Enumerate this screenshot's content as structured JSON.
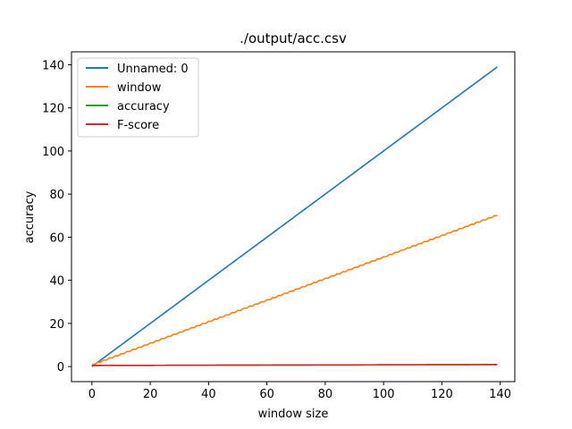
{
  "chart_data": {
    "type": "line",
    "title": "./output/acc.csv",
    "xlabel": "window size",
    "ylabel": "accuracy",
    "xlim": [
      -7,
      145
    ],
    "ylim": [
      -7,
      146
    ],
    "xticks": [
      0,
      20,
      40,
      60,
      80,
      100,
      120,
      140
    ],
    "yticks": [
      0,
      20,
      40,
      60,
      80,
      100,
      120,
      140
    ],
    "legend_position": "top-left",
    "grid": false,
    "x": {
      "start": 0,
      "end": 139,
      "step": 1
    },
    "series": [
      {
        "name": "Unnamed: 0",
        "color": "#1f77b4",
        "formula": "y = x",
        "values_at": {
          "0": 0,
          "139": 139
        }
      },
      {
        "name": "window",
        "color": "#ff7f0e",
        "formula": "y = floor(x/2) + 1",
        "values_at": {
          "0": 1,
          "139": 70
        }
      },
      {
        "name": "accuracy",
        "color": "#2ca02c",
        "formula": "approx 0.5 to 0.9",
        "values_at": {
          "0": 0.5,
          "139": 0.9
        }
      },
      {
        "name": "F-score",
        "color": "#d62728",
        "formula": "approx 0.5 to 0.9",
        "values_at": {
          "0": 0.5,
          "139": 0.9
        }
      }
    ]
  }
}
